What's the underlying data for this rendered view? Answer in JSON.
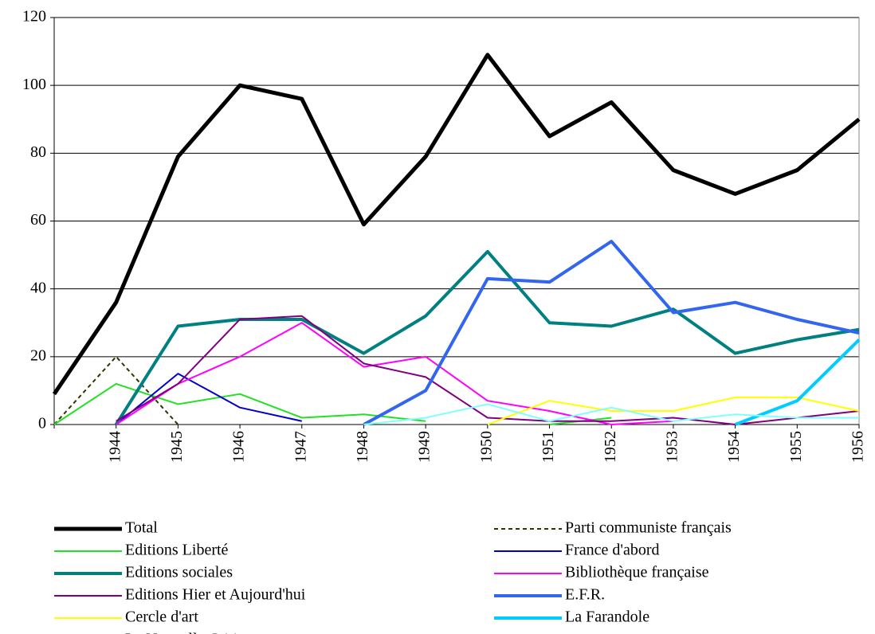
{
  "chart_data": {
    "type": "line",
    "categories": [
      null,
      "1944",
      "1945",
      "1946",
      "1947",
      "1948",
      "1949",
      "1950",
      "1951",
      "1952",
      "1953",
      "1954",
      "1955",
      "1956"
    ],
    "ylim": [
      0,
      120
    ],
    "yticks": [
      0,
      20,
      40,
      60,
      80,
      100,
      120
    ],
    "grid": true,
    "series": [
      {
        "name": "Total",
        "color": "#000000",
        "width": 5,
        "values": [
          9,
          36,
          79,
          100,
          96,
          59,
          79,
          109,
          85,
          95,
          75,
          68,
          75,
          90
        ]
      },
      {
        "name": "Parti communiste français",
        "color": "#333300",
        "width": 2,
        "dashed": true,
        "values": [
          0,
          20,
          0,
          null,
          null,
          null,
          null,
          null,
          null,
          null,
          null,
          null,
          null,
          null
        ]
      },
      {
        "name": "Editions Liberté",
        "color": "#22e022",
        "width": 2,
        "values": [
          0,
          12,
          6,
          9,
          2,
          3,
          1,
          null,
          0,
          2,
          null,
          null,
          null,
          null
        ]
      },
      {
        "name": "France d'abord",
        "color": "#0000cc",
        "width": 2,
        "values": [
          null,
          0,
          15,
          5,
          1,
          null,
          null,
          null,
          null,
          null,
          null,
          null,
          null,
          null
        ]
      },
      {
        "name": "Editions sociales",
        "color": "#008080",
        "width": 4,
        "values": [
          null,
          0,
          29,
          31,
          31,
          21,
          32,
          51,
          30,
          29,
          34,
          21,
          25,
          28
        ]
      },
      {
        "name": "Bibliothèque française",
        "color": "#ff00ff",
        "width": 2,
        "values": [
          null,
          0,
          12,
          20,
          30,
          17,
          20,
          7,
          4,
          0,
          1,
          null,
          null,
          null
        ]
      },
      {
        "name": "Editions Hier et Aujourd'hui",
        "color": "#800080",
        "width": 2,
        "values": [
          null,
          1,
          12,
          31,
          32,
          18,
          14,
          2,
          1,
          1,
          2,
          0,
          2,
          4
        ]
      },
      {
        "name": "E.F.R.",
        "color": "#3366ee",
        "width": 4,
        "values": [
          null,
          null,
          null,
          null,
          null,
          0,
          10,
          43,
          42,
          54,
          33,
          36,
          31,
          27
        ]
      },
      {
        "name": "Cercle d'art",
        "color": "#ffff00",
        "width": 2,
        "values": [
          null,
          null,
          null,
          null,
          null,
          null,
          null,
          0,
          7,
          4,
          4,
          8,
          8,
          4
        ]
      },
      {
        "name": "La Farandole",
        "color": "#00ccff",
        "width": 4,
        "values": [
          null,
          null,
          null,
          null,
          null,
          null,
          null,
          null,
          null,
          null,
          null,
          0,
          7,
          25
        ]
      },
      {
        "name": "La Nouvelle Critique",
        "color": "#80ffff",
        "width": 2,
        "values": [
          null,
          null,
          null,
          null,
          null,
          0,
          2,
          6,
          1,
          5,
          1,
          3,
          2,
          2
        ]
      }
    ]
  }
}
